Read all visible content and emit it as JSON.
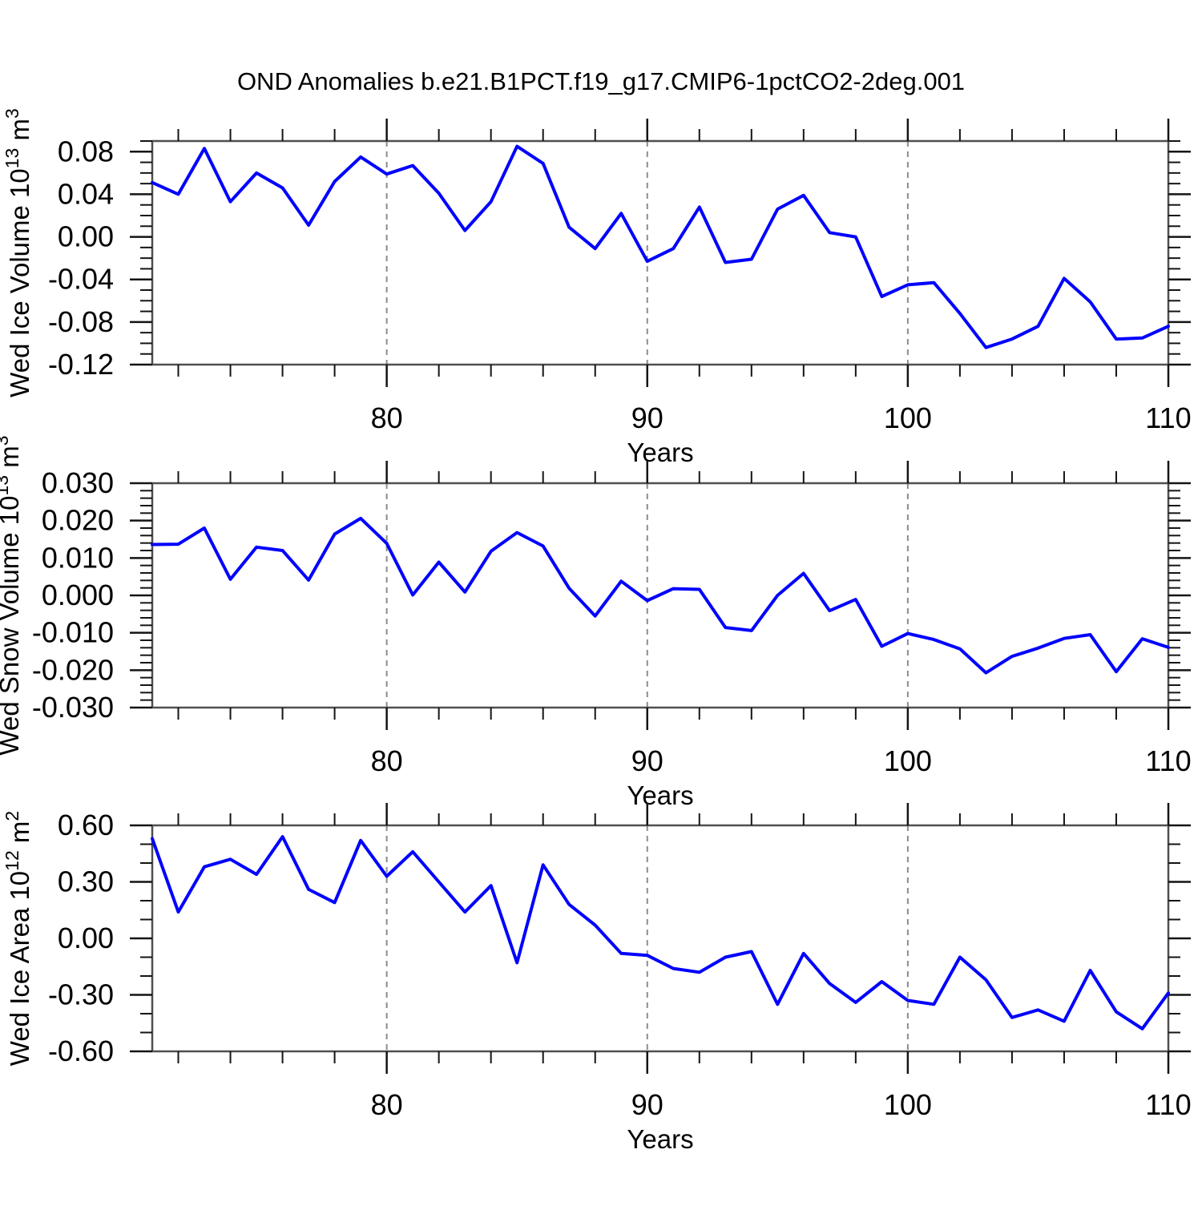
{
  "title": "OND Anomalies b.e21.B1PCT.f19_g17.CMIP6-1pctCO2-2deg.001",
  "colors": {
    "line": "#0000ff",
    "frame": "#4f4f4f",
    "grid": "#8c8c8c",
    "tick": "#141414",
    "text": "#000000",
    "background": "#ffffff"
  },
  "x_axis": {
    "label": "Years",
    "ticks": [
      80,
      90,
      100,
      110
    ],
    "minor_step": 2,
    "range": [
      71,
      110
    ]
  },
  "chart_data": [
    {
      "type": "line",
      "id": "ice-volume",
      "series_name": "Wed Ice Volume anomaly",
      "ylabel": "Wed Ice Volume 10^13 m^3",
      "ylabel_parts": [
        {
          "text": "Wed Ice Volume 10"
        },
        {
          "sup": "13"
        },
        {
          "text": " m"
        },
        {
          "sup": "3"
        }
      ],
      "xlabel": "Years",
      "xlim": [
        71,
        110
      ],
      "ylim": [
        -0.12,
        0.09
      ],
      "xticks": [
        80,
        90,
        100,
        110
      ],
      "xminor_step": 2,
      "gridlines_at": [
        80,
        90,
        100
      ],
      "yticks": [
        0.08,
        0.04,
        0.0,
        -0.04,
        -0.08,
        -0.12
      ],
      "ytick_labels": [
        "0.08",
        "0.04",
        "0.00",
        "-0.04",
        "-0.08",
        "-0.12"
      ],
      "yminor_step": 0.01,
      "line_color": "#0000ff",
      "grid": "vertical-dashed",
      "legend": "none",
      "x": [
        71,
        72,
        73,
        74,
        75,
        76,
        77,
        78,
        79,
        80,
        81,
        82,
        83,
        84,
        85,
        86,
        87,
        88,
        89,
        90,
        91,
        92,
        93,
        94,
        95,
        96,
        97,
        98,
        99,
        100,
        101,
        102,
        103,
        104,
        105,
        106,
        107,
        108,
        109,
        110
      ],
      "values": [
        0.051,
        0.04,
        0.083,
        0.033,
        0.06,
        0.046,
        0.011,
        0.052,
        0.075,
        0.059,
        0.067,
        0.041,
        0.006,
        0.033,
        0.085,
        0.069,
        0.009,
        -0.011,
        0.022,
        -0.023,
        -0.011,
        0.028,
        -0.024,
        -0.021,
        0.026,
        0.039,
        0.004,
        0.0,
        -0.056,
        -0.045,
        -0.043,
        -0.072,
        -0.104,
        -0.096,
        -0.084,
        -0.039,
        -0.061,
        -0.096,
        -0.095,
        -0.084
      ]
    },
    {
      "type": "line",
      "id": "snow-volume",
      "series_name": "Wed Snow Volume anomaly",
      "ylabel": "Wed Snow Volume 10^13 m^3",
      "ylabel_parts": [
        {
          "text": "Wed Snow Volume 10"
        },
        {
          "sup": "13"
        },
        {
          "text": " m"
        },
        {
          "sup": "3"
        }
      ],
      "xlabel": "Years",
      "xlim": [
        71,
        110
      ],
      "ylim": [
        -0.03,
        0.03
      ],
      "xticks": [
        80,
        90,
        100,
        110
      ],
      "xminor_step": 2,
      "gridlines_at": [
        80,
        90,
        100
      ],
      "yticks": [
        0.03,
        0.02,
        0.01,
        0.0,
        -0.01,
        -0.02,
        -0.03
      ],
      "ytick_labels": [
        "0.030",
        "0.020",
        "0.010",
        "0.000",
        "-0.010",
        "-0.020",
        "-0.030"
      ],
      "yminor_step": 0.002,
      "line_color": "#0000ff",
      "grid": "vertical-dashed",
      "legend": "none",
      "x": [
        71,
        72,
        73,
        74,
        75,
        76,
        77,
        78,
        79,
        80,
        81,
        82,
        83,
        84,
        85,
        86,
        87,
        88,
        89,
        90,
        91,
        92,
        93,
        94,
        95,
        96,
        97,
        98,
        99,
        100,
        101,
        102,
        103,
        104,
        105,
        106,
        107,
        108,
        109,
        110
      ],
      "values": [
        0.0136,
        0.0137,
        0.018,
        0.0043,
        0.0129,
        0.012,
        0.0041,
        0.0164,
        0.0206,
        0.0139,
        0.0001,
        0.0089,
        0.0009,
        0.0118,
        0.0168,
        0.0132,
        0.0019,
        -0.0055,
        0.0038,
        -0.0014,
        0.0018,
        0.0016,
        -0.0086,
        -0.0094,
        0.0,
        0.0059,
        -0.0041,
        -0.0011,
        -0.0136,
        -0.0102,
        -0.0118,
        -0.0143,
        -0.0207,
        -0.0163,
        -0.0141,
        -0.0115,
        -0.0105,
        -0.0204,
        -0.0116,
        -0.0139
      ]
    },
    {
      "type": "line",
      "id": "ice-area",
      "series_name": "Wed Ice Area anomaly",
      "ylabel": "Wed Ice Area 10^12 m^2",
      "ylabel_parts": [
        {
          "text": "Wed Ice Area 10"
        },
        {
          "sup": "12"
        },
        {
          "text": " m"
        },
        {
          "sup": "2"
        }
      ],
      "xlabel": "Years",
      "xlim": [
        71,
        110
      ],
      "ylim": [
        -0.6,
        0.6
      ],
      "xticks": [
        80,
        90,
        100,
        110
      ],
      "xminor_step": 2,
      "gridlines_at": [
        80,
        90,
        100
      ],
      "yticks": [
        0.6,
        0.3,
        0.0,
        -0.3,
        -0.6
      ],
      "ytick_labels": [
        "0.60",
        "0.30",
        "0.00",
        "-0.30",
        "-0.60"
      ],
      "yminor_step": 0.1,
      "line_color": "#0000ff",
      "grid": "vertical-dashed",
      "legend": "none",
      "x": [
        71,
        72,
        73,
        74,
        75,
        76,
        77,
        78,
        79,
        80,
        81,
        82,
        83,
        84,
        85,
        86,
        87,
        88,
        89,
        90,
        91,
        92,
        93,
        94,
        95,
        96,
        97,
        98,
        99,
        100,
        101,
        102,
        103,
        104,
        105,
        106,
        107,
        108,
        109,
        110
      ],
      "values": [
        0.53,
        0.14,
        0.38,
        0.42,
        0.34,
        0.54,
        0.26,
        0.19,
        0.52,
        0.33,
        0.46,
        0.3,
        0.14,
        0.28,
        -0.13,
        0.39,
        0.18,
        0.07,
        -0.08,
        -0.09,
        -0.16,
        -0.18,
        -0.1,
        -0.07,
        -0.35,
        -0.08,
        -0.24,
        -0.34,
        -0.23,
        -0.33,
        -0.35,
        -0.1,
        -0.22,
        -0.42,
        -0.38,
        -0.44,
        -0.17,
        -0.39,
        -0.48,
        -0.29
      ]
    }
  ]
}
